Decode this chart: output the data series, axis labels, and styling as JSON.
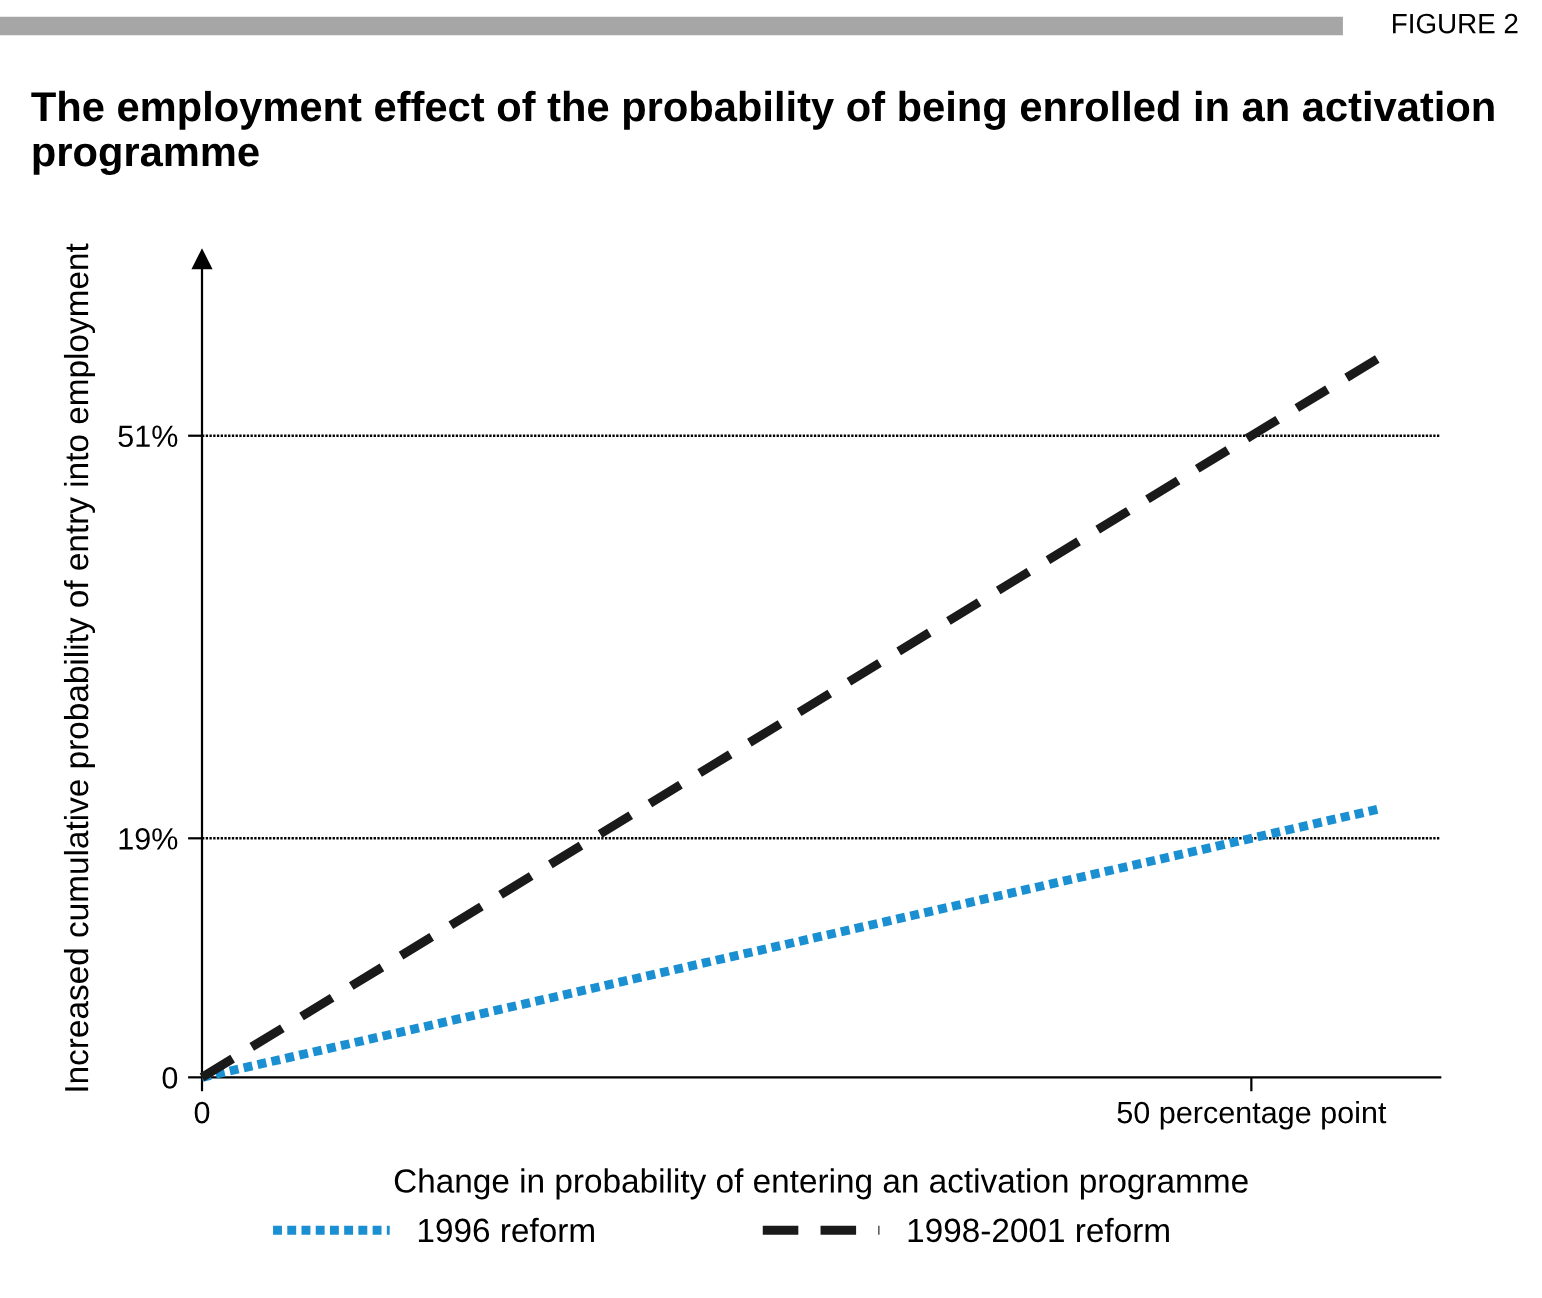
{
  "chart_data": {
    "type": "line",
    "title": "The employment effect of the probability of being enrolled in an activation programme",
    "annotations": [
      "FIGURE 2"
    ],
    "xlabel": "Change in probability of entering an activation programme",
    "ylabel": "Increased cumulative probability of entry into employment",
    "x": [
      0,
      50,
      56
    ],
    "series": [
      {
        "name": "1996 reform",
        "color": "#1a8fd1",
        "line_style": "dotted",
        "values": [
          0,
          19,
          21.3
        ]
      },
      {
        "name": "1998-2001 reform",
        "color": "#1a1a1a",
        "line_style": "dashed",
        "values": [
          0,
          51,
          57.1
        ]
      }
    ],
    "xlim": [
      0,
      59
    ],
    "ylim": [
      0,
      65
    ],
    "xticks": [
      0,
      {
        "value": 50,
        "label": "50 percentage point"
      }
    ],
    "yticks": [
      0,
      {
        "value": 19,
        "label": "19%"
      },
      {
        "value": 51,
        "label": "51%"
      }
    ],
    "ref_lines": [
      {
        "axis": "y",
        "value": 19,
        "label": null,
        "line_style": "dotted",
        "color": "#000000"
      },
      {
        "axis": "y",
        "value": 51,
        "label": null,
        "line_style": "dotted",
        "color": "#000000"
      }
    ],
    "legend": "bottom",
    "grid": false,
    "marker": "none"
  }
}
